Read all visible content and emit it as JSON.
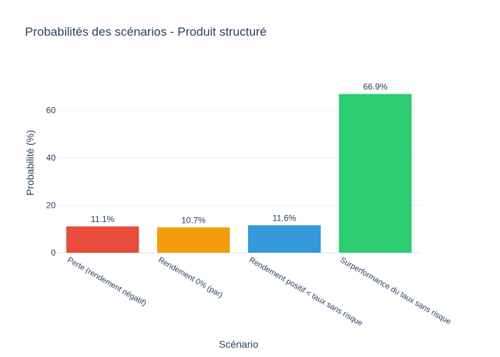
{
  "chart_data": {
    "type": "bar",
    "title": "Probabilités des scénarios - Produit structuré",
    "xlabel": "Scénario",
    "ylabel": "Probabilité (%)",
    "categories": [
      "Perte (rendement négatif)",
      "Rendement 0% (par)",
      "Rendement positif < taux sans risque",
      "Surperformance du taux sans risque"
    ],
    "values": [
      11.1,
      10.7,
      11.6,
      66.9
    ],
    "data_labels": [
      "11.1%",
      "10.7%",
      "11.6%",
      "66.9%"
    ],
    "colors": [
      "#e74c3c",
      "#f39c12",
      "#3498db",
      "#2ecc71"
    ],
    "ylim": [
      0,
      70.4
    ],
    "yticks": [
      0,
      20,
      40,
      60
    ],
    "grid": true,
    "legend": "none"
  }
}
